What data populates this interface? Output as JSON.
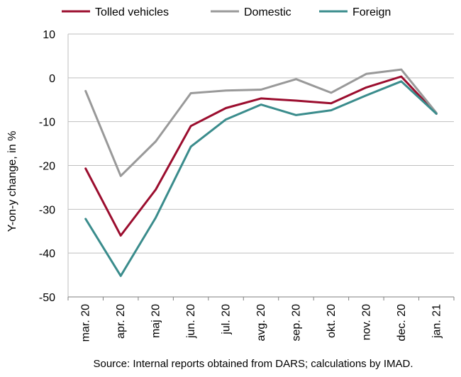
{
  "chart_data": {
    "type": "line",
    "title": "",
    "xlabel": "",
    "ylabel": "Y-on-y change, in %",
    "ylim": [
      -50,
      10
    ],
    "yticks": [
      10,
      0,
      -10,
      -20,
      -30,
      -40,
      -50
    ],
    "grid": true,
    "legend_position": "top",
    "categories": [
      "mar. 20",
      "apr. 20",
      "maj 20",
      "jun. 20",
      "jul. 20",
      "avg. 20",
      "sep. 20",
      "okt. 20",
      "nov. 20",
      "dec. 20",
      "jan. 21"
    ],
    "series": [
      {
        "name": "Tolled vehicles",
        "color": "#9b0d2e",
        "values": [
          -20.7,
          -36.0,
          -25.5,
          -11.0,
          -6.9,
          -4.7,
          -5.2,
          -5.8,
          -2.2,
          0.3,
          -8.2
        ]
      },
      {
        "name": "Domestic",
        "color": "#999999",
        "values": [
          -3.0,
          -22.4,
          -14.5,
          -3.5,
          -2.9,
          -2.7,
          -0.3,
          -3.4,
          0.9,
          1.9,
          -8.0
        ]
      },
      {
        "name": "Foreign",
        "color": "#3a8c8c",
        "values": [
          -32.2,
          -45.2,
          -31.9,
          -15.7,
          -9.5,
          -6.1,
          -8.5,
          -7.4,
          -4.0,
          -0.8,
          -8.2
        ]
      }
    ],
    "source": "Source: Internal reports obtained from DARS; calculations by IMAD."
  }
}
